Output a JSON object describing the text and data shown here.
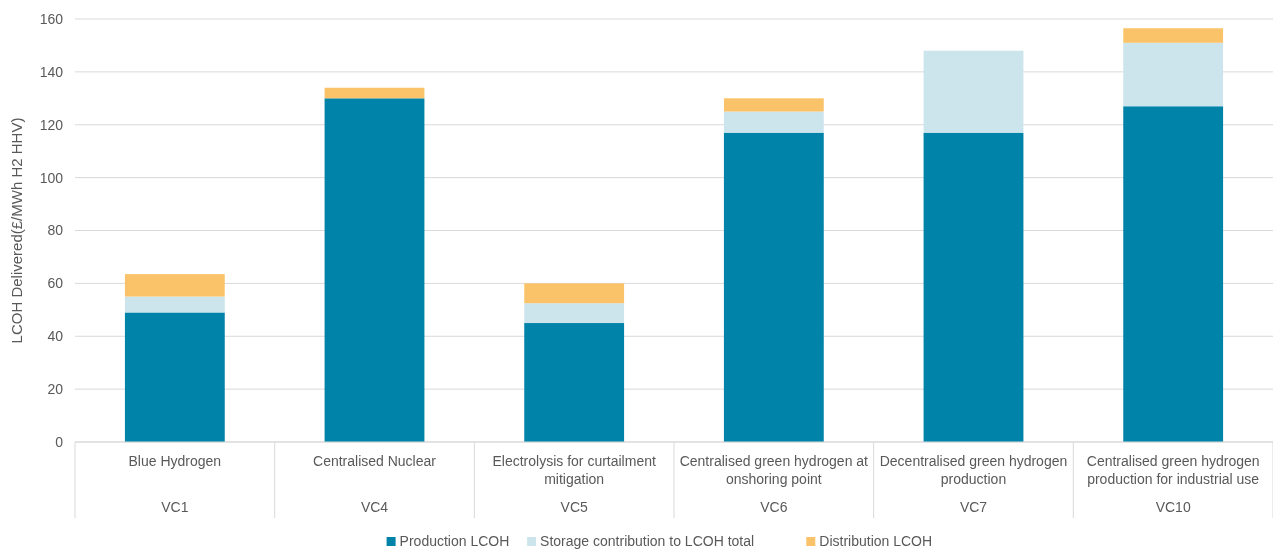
{
  "chart_data": {
    "type": "bar",
    "stacked": true,
    "ylabel": "LCOH Delivered(£/MWh H2 HHV)",
    "categories": [
      "Blue Hydrogen",
      "Centralised Nuclear",
      "Electrolysis for curtailment mitigation",
      "Centralised green hydrogen at onshoring point",
      "Decentralised green hydrogen production",
      "Centralised green hydrogen production for industrial use"
    ],
    "annotations": [
      "VC1",
      "VC4",
      "VC5",
      "VC6",
      "VC7",
      "VC10"
    ],
    "series": [
      {
        "name": "Production LCOH",
        "color": "#0083a9",
        "values": [
          49,
          130,
          45,
          117,
          117,
          127
        ]
      },
      {
        "name": "Storage contribution to LCOH total",
        "color": "#cce5ed",
        "values": [
          6,
          0,
          7.5,
          8,
          31,
          24
        ]
      },
      {
        "name": "Distribution LCOH",
        "color": "#fac36a",
        "values": [
          8.5,
          4,
          7.5,
          5,
          0,
          5.5
        ]
      }
    ],
    "ylim": [
      0,
      160
    ],
    "yticks": [
      0,
      20,
      40,
      60,
      80,
      100,
      120,
      140,
      160
    ],
    "grid": "y",
    "legend": "bottom"
  }
}
